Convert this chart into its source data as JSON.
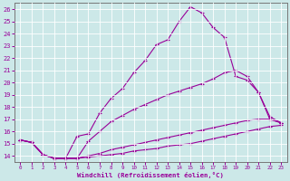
{
  "xlabel": "Windchill (Refroidissement éolien,°C)",
  "bg_color": "#cce8e8",
  "line_color": "#990099",
  "grid_color": "#ffffff",
  "xlim": [
    -0.5,
    23.5
  ],
  "ylim": [
    13.5,
    26.5
  ],
  "xticks": [
    0,
    1,
    2,
    3,
    4,
    5,
    6,
    7,
    8,
    9,
    10,
    11,
    12,
    13,
    14,
    15,
    16,
    17,
    18,
    19,
    20,
    21,
    22,
    23
  ],
  "yticks": [
    14,
    15,
    16,
    17,
    18,
    19,
    20,
    21,
    22,
    23,
    24,
    25,
    26
  ],
  "line1_x": [
    0,
    1,
    2,
    3,
    4,
    5,
    6,
    7,
    8,
    9,
    10,
    11,
    12,
    13,
    14,
    15,
    16,
    17,
    18,
    19,
    20,
    21,
    22,
    23
  ],
  "line1_y": [
    15.3,
    15.1,
    14.1,
    13.8,
    13.8,
    15.6,
    15.8,
    17.5,
    18.7,
    19.5,
    20.8,
    21.8,
    23.1,
    23.5,
    25.0,
    26.2,
    25.7,
    24.5,
    23.7,
    20.5,
    20.2,
    19.2,
    17.0,
    16.7
  ],
  "line2_x": [
    0,
    1,
    2,
    3,
    4,
    5,
    6,
    7,
    8,
    9,
    10,
    11,
    12,
    13,
    14,
    15,
    16,
    17,
    18,
    19,
    20,
    21,
    22,
    23
  ],
  "line2_y": [
    15.3,
    15.1,
    14.1,
    13.8,
    13.8,
    13.8,
    15.2,
    16.0,
    16.8,
    17.3,
    17.8,
    18.2,
    18.6,
    19.0,
    19.3,
    19.6,
    19.9,
    20.3,
    20.8,
    21.0,
    20.5,
    19.2,
    17.2,
    16.7
  ],
  "line3_x": [
    0,
    1,
    2,
    3,
    4,
    5,
    6,
    7,
    8,
    9,
    10,
    11,
    12,
    13,
    14,
    15,
    16,
    17,
    18,
    19,
    20,
    21,
    22,
    23
  ],
  "line3_y": [
    15.3,
    15.1,
    14.1,
    13.8,
    13.8,
    13.8,
    14.0,
    14.2,
    14.5,
    14.7,
    14.9,
    15.1,
    15.3,
    15.5,
    15.7,
    15.9,
    16.1,
    16.3,
    16.5,
    16.7,
    16.9,
    17.0,
    17.0,
    16.7
  ],
  "line4_x": [
    0,
    1,
    2,
    3,
    4,
    5,
    6,
    7,
    8,
    9,
    10,
    11,
    12,
    13,
    14,
    15,
    16,
    17,
    18,
    19,
    20,
    21,
    22,
    23
  ],
  "line4_y": [
    15.3,
    15.1,
    14.1,
    13.8,
    13.8,
    13.8,
    13.9,
    14.0,
    14.1,
    14.2,
    14.4,
    14.5,
    14.6,
    14.8,
    14.9,
    15.0,
    15.2,
    15.4,
    15.6,
    15.8,
    16.0,
    16.2,
    16.4,
    16.5
  ]
}
